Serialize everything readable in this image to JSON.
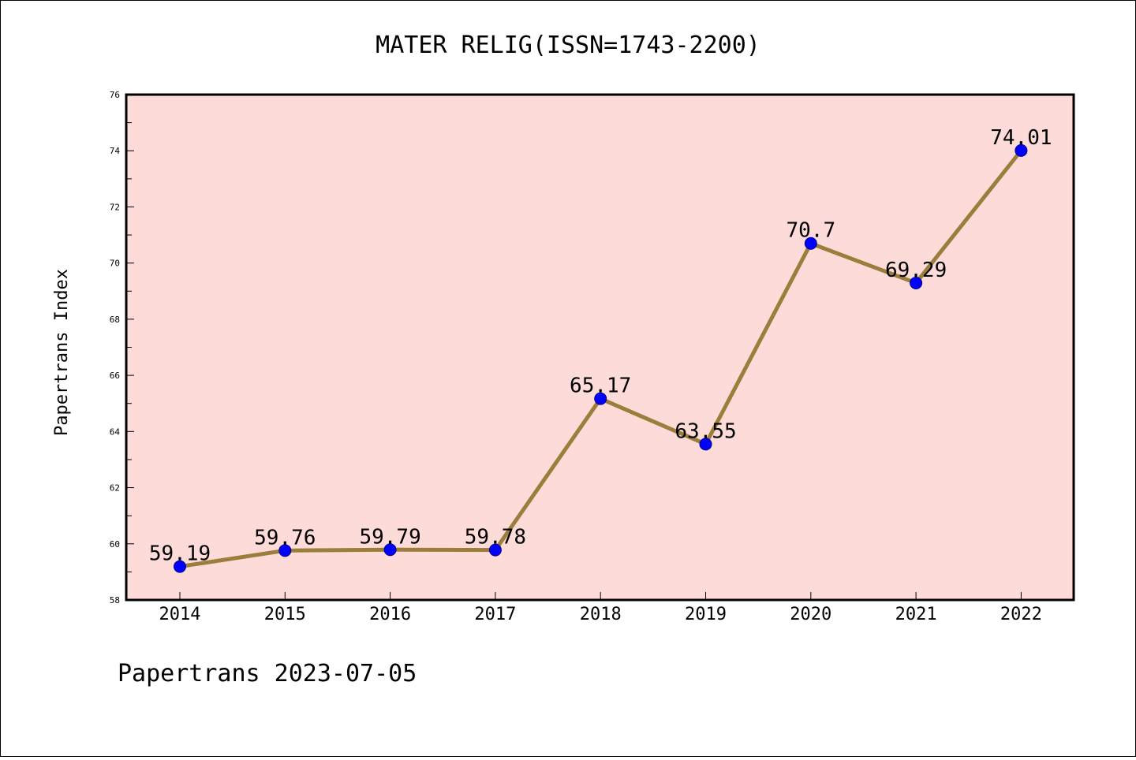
{
  "chart_data": {
    "type": "line",
    "title": "MATER RELIG(ISSN=1743-2200)",
    "xlabel": "",
    "ylabel": "Papertrans Index",
    "categories": [
      "2014",
      "2015",
      "2016",
      "2017",
      "2018",
      "2019",
      "2020",
      "2021",
      "2022"
    ],
    "series": [
      {
        "values": [
          59.19,
          59.76,
          59.79,
          59.78,
          65.17,
          63.55,
          70.7,
          69.29,
          74.01
        ]
      }
    ],
    "data_labels": [
      "59.19",
      "59.76",
      "59.79",
      "59.78",
      "65.17",
      "63.55",
      "70.7",
      "69.29",
      "74.01"
    ],
    "ylim": [
      58,
      76
    ],
    "yticks": [
      "58",
      "60",
      "62",
      "64",
      "66",
      "68",
      "70",
      "72",
      "74",
      "76"
    ],
    "grid": false,
    "legend": "none",
    "colors": {
      "line": "#9b7d3c",
      "marker": "#0000ff",
      "plot_bg": "#fddbd8",
      "axis": "#000000"
    }
  },
  "footer": {
    "text": "Papertrans 2023-07-05"
  }
}
